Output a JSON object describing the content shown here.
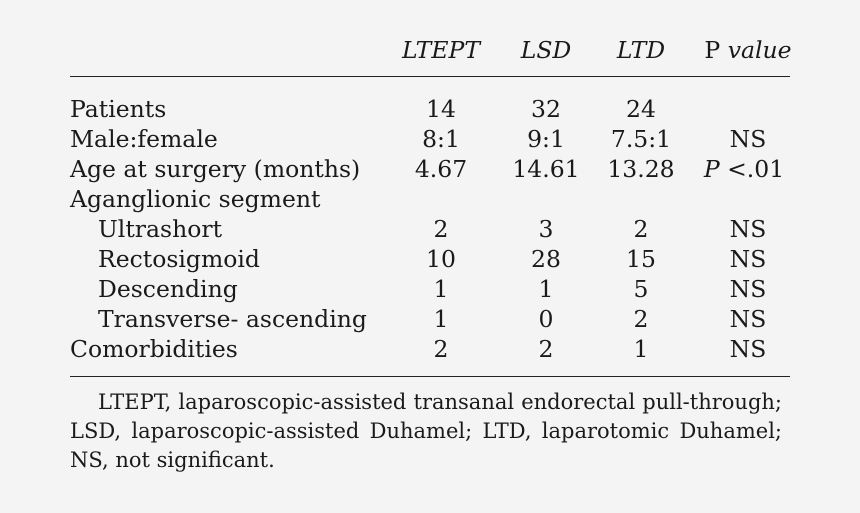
{
  "header": {
    "col1": "LTEPT",
    "col2": "LSD",
    "col3": "LTD",
    "col4_prefix": "P",
    "col4_suffix": "value"
  },
  "rows": [
    {
      "label": "Patients",
      "indent": false,
      "v1": "14",
      "v2": "32",
      "v3": "24",
      "p": ""
    },
    {
      "label": "Male:female",
      "indent": false,
      "v1": "8:1",
      "v2": "9:1",
      "v3": "7.5:1",
      "p": "NS"
    },
    {
      "label": "Age at surgery (months)",
      "indent": false,
      "v1": "4.67",
      "v2": "14.61",
      "v3": "13.28",
      "p_italic": "P",
      "p_rest": " <.01"
    },
    {
      "label": "Aganglionic segment",
      "indent": false,
      "v1": "",
      "v2": "",
      "v3": "",
      "p": ""
    },
    {
      "label": "Ultrashort",
      "indent": true,
      "v1": "2",
      "v2": "3",
      "v3": "2",
      "p": "NS"
    },
    {
      "label": "Rectosigmoid",
      "indent": true,
      "v1": "10",
      "v2": "28",
      "v3": "15",
      "p": "NS"
    },
    {
      "label": "Descending",
      "indent": true,
      "v1": "1",
      "v2": "1",
      "v3": "5",
      "p": "NS"
    },
    {
      "label": "Transverse- ascending",
      "indent": true,
      "v1": "1",
      "v2": "0",
      "v3": "2",
      "p": "NS"
    },
    {
      "label": "Comorbidities",
      "indent": false,
      "v1": "2",
      "v2": "2",
      "v3": "1",
      "p": "NS"
    }
  ],
  "footnote": "LTEPT, laparoscopic-assisted transanal endorectal pull-through; LSD, laparoscopic-assisted Duhamel; LTD, laparotomic Duhamel; NS, not significant."
}
